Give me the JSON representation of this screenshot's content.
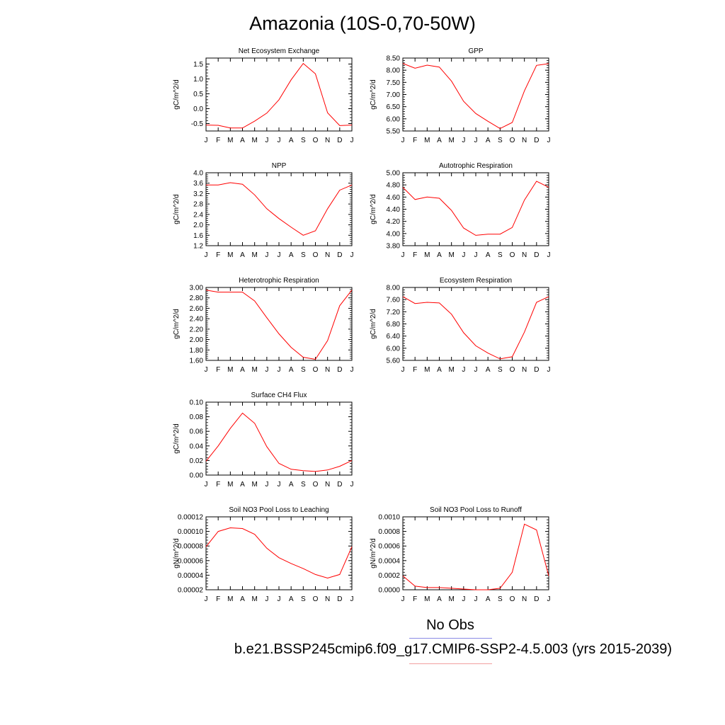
{
  "figure": {
    "title": "Amazonia (10S-0,70-50W)",
    "legend": {
      "obs_label": "No Obs",
      "case_label": "b.e21.BSSP245cmip6.f09_g17.CMIP6-SSP2-4.5.003 (yrs 2015-2039)",
      "obs_color": "#8a8ae6",
      "case_color": "#f2a0a0"
    },
    "line_color": "#ff0000"
  },
  "chart_data": [
    {
      "type": "line",
      "title": "Net Ecosystem Exchange",
      "ylabel": "gC/m^2/d",
      "x": [
        "J",
        "F",
        "M",
        "A",
        "M",
        "J",
        "J",
        "A",
        "S",
        "O",
        "N",
        "D",
        "J"
      ],
      "ylim": [
        -0.75,
        1.7
      ],
      "yticks": [
        -0.5,
        0.0,
        0.5,
        1.0,
        1.5
      ],
      "ytick_labels": [
        "-0.5",
        "0.0",
        "0.5",
        "1.0",
        "1.5"
      ],
      "series": [
        {
          "values": [
            -0.55,
            -0.56,
            -0.65,
            -0.65,
            -0.42,
            -0.15,
            0.3,
            0.97,
            1.52,
            1.17,
            -0.14,
            -0.57,
            -0.55
          ]
        }
      ]
    },
    {
      "type": "line",
      "title": "GPP",
      "ylabel": "gC/m^2/d",
      "x": [
        "J",
        "F",
        "M",
        "A",
        "M",
        "J",
        "J",
        "A",
        "S",
        "O",
        "N",
        "D",
        "J"
      ],
      "ylim": [
        5.5,
        8.5
      ],
      "yticks": [
        5.5,
        6.0,
        6.5,
        7.0,
        7.5,
        8.0,
        8.5
      ],
      "ytick_labels": [
        "5.50",
        "6.00",
        "6.50",
        "7.00",
        "7.50",
        "8.00",
        "8.50"
      ],
      "series": [
        {
          "values": [
            8.28,
            8.08,
            8.21,
            8.13,
            7.55,
            6.72,
            6.22,
            5.9,
            5.6,
            5.85,
            7.15,
            8.2,
            8.27
          ]
        }
      ]
    },
    {
      "type": "line",
      "title": "NPP",
      "ylabel": "gC/m^2/d",
      "x": [
        "J",
        "F",
        "M",
        "A",
        "M",
        "J",
        "J",
        "A",
        "S",
        "O",
        "N",
        "D",
        "J"
      ],
      "ylim": [
        1.2,
        4.0
      ],
      "yticks": [
        1.2,
        1.6,
        2.0,
        2.4,
        2.8,
        3.2,
        3.6,
        4.0
      ],
      "ytick_labels": [
        "1.2",
        "1.6",
        "2.0",
        "2.4",
        "2.8",
        "3.2",
        "3.6",
        "4.0"
      ],
      "series": [
        {
          "values": [
            3.53,
            3.53,
            3.62,
            3.56,
            3.15,
            2.62,
            2.24,
            1.91,
            1.6,
            1.77,
            2.62,
            3.33,
            3.53
          ]
        }
      ]
    },
    {
      "type": "line",
      "title": "Autotrophic Respiration",
      "ylabel": "gC/m^2/d",
      "x": [
        "J",
        "F",
        "M",
        "A",
        "M",
        "J",
        "J",
        "A",
        "S",
        "O",
        "N",
        "D",
        "J"
      ],
      "ylim": [
        3.8,
        5.0
      ],
      "yticks": [
        3.8,
        4.0,
        4.2,
        4.4,
        4.6,
        4.8,
        5.0
      ],
      "ytick_labels": [
        "3.80",
        "4.00",
        "4.20",
        "4.40",
        "4.60",
        "4.80",
        "5.00"
      ],
      "series": [
        {
          "values": [
            4.76,
            4.56,
            4.6,
            4.58,
            4.38,
            4.09,
            3.97,
            3.99,
            3.99,
            4.1,
            4.55,
            4.86,
            4.76
          ]
        }
      ]
    },
    {
      "type": "line",
      "title": "Heterotrophic Respiration",
      "ylabel": "gC/m^2/d",
      "x": [
        "J",
        "F",
        "M",
        "A",
        "M",
        "J",
        "J",
        "A",
        "S",
        "O",
        "N",
        "D",
        "J"
      ],
      "ylim": [
        1.6,
        3.0
      ],
      "yticks": [
        1.6,
        1.8,
        2.0,
        2.2,
        2.4,
        2.6,
        2.8,
        3.0
      ],
      "ytick_labels": [
        "1.60",
        "1.80",
        "2.00",
        "2.20",
        "2.40",
        "2.60",
        "2.80",
        "3.00"
      ],
      "series": [
        {
          "values": [
            2.95,
            2.91,
            2.91,
            2.91,
            2.74,
            2.42,
            2.11,
            1.85,
            1.66,
            1.62,
            1.98,
            2.65,
            2.95
          ]
        }
      ]
    },
    {
      "type": "line",
      "title": "Ecosystem Respiration",
      "ylabel": "gC/m^2/d",
      "x": [
        "J",
        "F",
        "M",
        "A",
        "M",
        "J",
        "J",
        "A",
        "S",
        "O",
        "N",
        "D",
        "J"
      ],
      "ylim": [
        5.6,
        8.0
      ],
      "yticks": [
        5.6,
        6.0,
        6.4,
        6.8,
        7.2,
        7.6,
        8.0
      ],
      "ytick_labels": [
        "5.60",
        "6.00",
        "6.40",
        "6.80",
        "7.20",
        "7.60",
        "8.00"
      ],
      "series": [
        {
          "values": [
            7.7,
            7.47,
            7.51,
            7.49,
            7.12,
            6.51,
            6.08,
            5.84,
            5.65,
            5.72,
            6.53,
            7.51,
            7.7
          ]
        }
      ]
    },
    {
      "type": "line",
      "title": "Surface CH4 Flux",
      "ylabel": "gC/m^2/d",
      "x": [
        "J",
        "F",
        "M",
        "A",
        "M",
        "J",
        "J",
        "A",
        "S",
        "O",
        "N",
        "D",
        "J"
      ],
      "ylim": [
        0.0,
        0.1
      ],
      "yticks": [
        0.0,
        0.02,
        0.04,
        0.06,
        0.08,
        0.1
      ],
      "ytick_labels": [
        "0.00",
        "0.02",
        "0.04",
        "0.06",
        "0.08",
        "0.10"
      ],
      "series": [
        {
          "values": [
            0.019,
            0.04,
            0.064,
            0.085,
            0.071,
            0.039,
            0.016,
            0.008,
            0.006,
            0.005,
            0.007,
            0.012,
            0.02
          ]
        }
      ]
    },
    {
      "type": "line",
      "title": "Soil NO3 Pool Loss to Leaching",
      "ylabel": "gN/m^2/d",
      "x": [
        "J",
        "F",
        "M",
        "A",
        "M",
        "J",
        "J",
        "A",
        "S",
        "O",
        "N",
        "D",
        "J"
      ],
      "ylim": [
        2e-05,
        0.00012
      ],
      "yticks": [
        2e-05,
        4e-05,
        6e-05,
        8e-05,
        0.0001,
        0.00012
      ],
      "ytick_labels": [
        "0.00002",
        "0.00004",
        "0.00006",
        "0.00008",
        "0.00010",
        "0.00012"
      ],
      "series": [
        {
          "values": [
            7.9e-05,
            0.0001,
            0.000105,
            0.000104,
            9.6e-05,
            7.7e-05,
            6.4e-05,
            5.6e-05,
            4.9e-05,
            4.1e-05,
            3.6e-05,
            4.1e-05,
            7.9e-05
          ]
        }
      ]
    },
    {
      "type": "line",
      "title": "Soil NO3 Pool Loss to Runoff",
      "ylabel": "gN/m^2/d",
      "x": [
        "J",
        "F",
        "M",
        "A",
        "M",
        "J",
        "J",
        "A",
        "S",
        "O",
        "N",
        "D",
        "J"
      ],
      "ylim": [
        0.0,
        0.001
      ],
      "yticks": [
        0.0,
        0.0002,
        0.0004,
        0.0006,
        0.0008,
        0.001
      ],
      "ytick_labels": [
        "0.0000",
        "0.0002",
        "0.0004",
        "0.0006",
        "0.0008",
        "0.0010"
      ],
      "series": [
        {
          "values": [
            0.00019,
            5e-05,
            3e-05,
            3e-05,
            2e-05,
            1e-05,
            0.0,
            0.0,
            2e-05,
            0.00024,
            0.0009,
            0.00082,
            0.00019
          ]
        }
      ]
    }
  ]
}
